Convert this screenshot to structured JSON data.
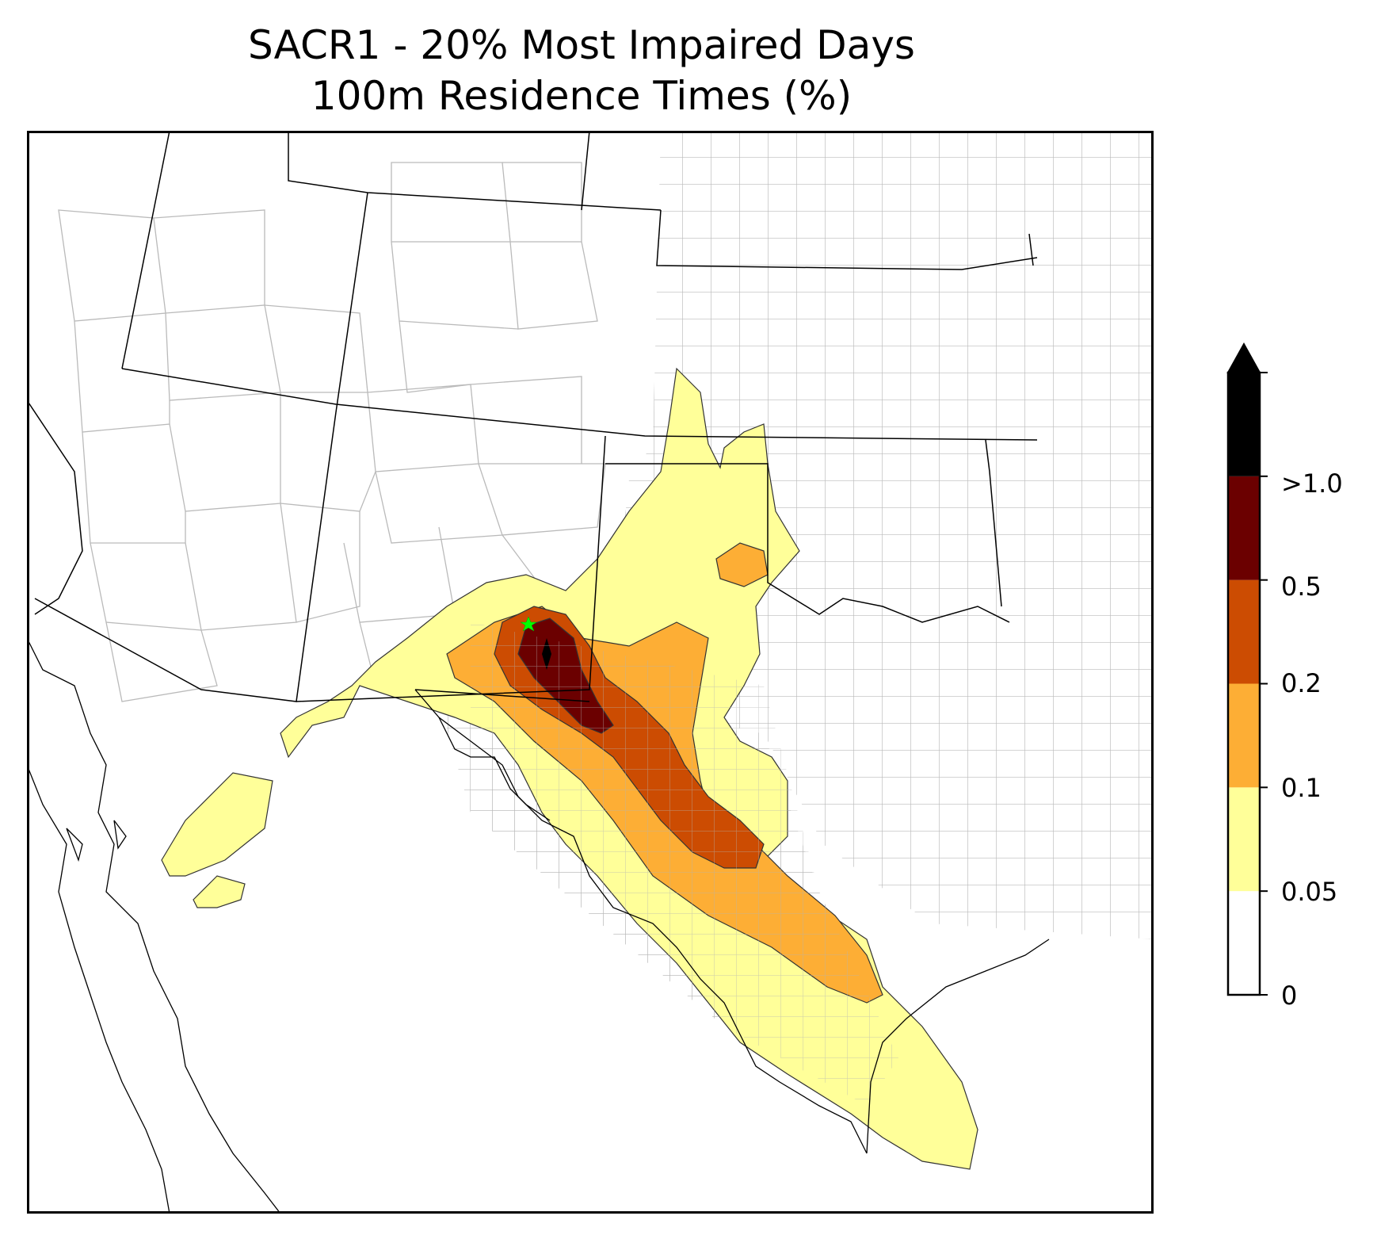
{
  "title": {
    "line1": "SACR1 - 20% Most Impaired Days",
    "line2": "100m Residence Times (%)"
  },
  "colorbar": {
    "tick_labels": [
      "0",
      "0.05",
      "0.1",
      "0.2",
      "0.5",
      ">1.0"
    ],
    "bins": [
      {
        "range": "0-0.05",
        "color": "#ffffff"
      },
      {
        "range": "0.05-0.1",
        "color": "#ffff99"
      },
      {
        "range": "0.1-0.2",
        "color": "#fdae35"
      },
      {
        "range": "0.2-0.5",
        "color": "#cc4c02"
      },
      {
        "range": "0.5-1.0",
        "color": "#6b0000"
      },
      {
        "range": ">1.0",
        "color": "#000000"
      }
    ],
    "extend": "max"
  },
  "map": {
    "region": "Southwestern United States and northern Mexico",
    "marker": {
      "symbol": "star",
      "color": "#00ff00"
    },
    "boundaries": {
      "state_color": "#000000",
      "county_color": "#999999"
    }
  }
}
